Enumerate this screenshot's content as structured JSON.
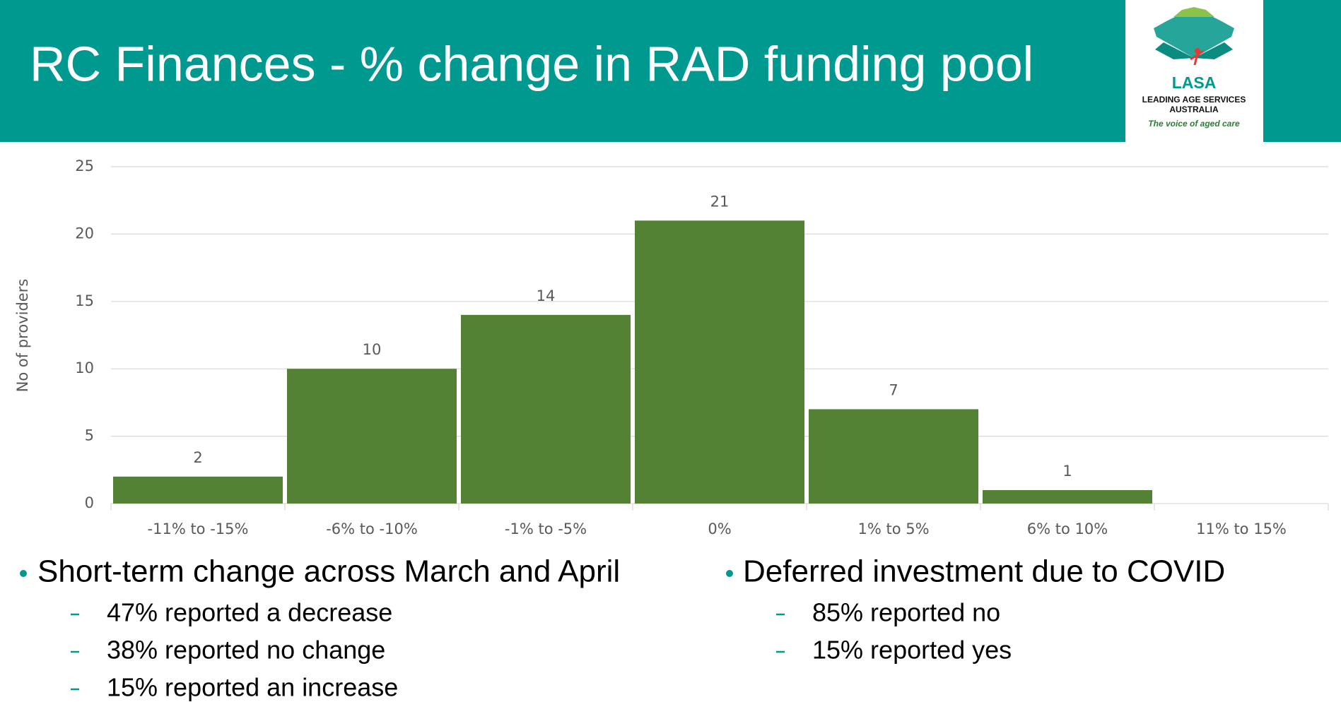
{
  "header": {
    "title": "RC Finances - % change in RAD funding pool"
  },
  "logo": {
    "name": "LASA",
    "line1": "LEADING AGE SERVICES",
    "line2": "AUSTRALIA",
    "tagline": "The voice of aged care"
  },
  "chart_data": {
    "type": "bar",
    "ylabel": "No of providers",
    "categories": [
      "-11% to -15%",
      "-6% to -10%",
      "-1% to -5%",
      "0%",
      "1% to 5%",
      "6% to 10%",
      "11% to 15%"
    ],
    "values": [
      2,
      10,
      14,
      21,
      7,
      1,
      null
    ],
    "color": "#548235",
    "ylim": [
      0,
      25
    ],
    "yticks": [
      0,
      5,
      10,
      15,
      20,
      25
    ],
    "grid": true
  },
  "bullets": [
    {
      "text": "Short-term change across March and April",
      "items": [
        "47% reported a decrease",
        "38% reported no change",
        "15% reported an increase"
      ]
    },
    {
      "text": "Deferred investment due to COVID",
      "items": [
        "85% reported no",
        "15% reported yes"
      ]
    }
  ]
}
